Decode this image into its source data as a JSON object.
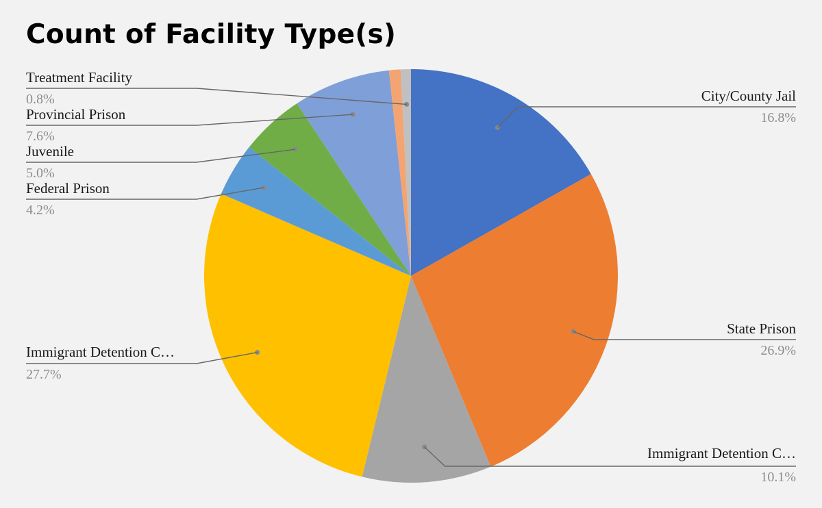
{
  "chart_data": {
    "type": "pie",
    "title": "Count of Facility Type(s)",
    "slices": [
      {
        "label": "City/County Jail",
        "percent_label": "16.8%",
        "value": 16.8,
        "color": "#4472c4"
      },
      {
        "label": "State Prison",
        "percent_label": "26.9%",
        "value": 26.9,
        "color": "#ed7d31"
      },
      {
        "label": "Immigrant Detention C…",
        "percent_label": "10.1%",
        "value": 10.1,
        "color": "#a5a5a5"
      },
      {
        "label": "Immigrant Detention C…",
        "percent_label": "27.7%",
        "value": 27.7,
        "color": "#ffc000"
      },
      {
        "label": "Federal Prison",
        "percent_label": "4.2%",
        "value": 4.2,
        "color": "#5b9bd5"
      },
      {
        "label": "Juvenile",
        "percent_label": "5.0%",
        "value": 5.0,
        "color": "#70ad47"
      },
      {
        "label": "Provincial Prison",
        "percent_label": "7.6%",
        "value": 7.6,
        "color": "#7f9fd9"
      },
      {
        "label": "",
        "percent_label": "",
        "value": 0.9,
        "color": "#f4a470"
      },
      {
        "label": "Treatment Facility",
        "percent_label": "0.8%",
        "value": 0.8,
        "color": "#c0c0c0"
      }
    ]
  }
}
